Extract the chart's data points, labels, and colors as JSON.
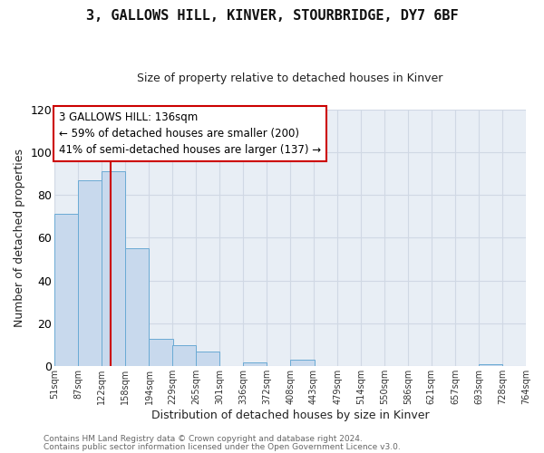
{
  "title": "3, GALLOWS HILL, KINVER, STOURBRIDGE, DY7 6BF",
  "subtitle": "Size of property relative to detached houses in Kinver",
  "xlabel": "Distribution of detached houses by size in Kinver",
  "ylabel": "Number of detached properties",
  "bar_left_edges": [
    51,
    87,
    122,
    158,
    194,
    229,
    265,
    301,
    336,
    372,
    408,
    443,
    479,
    514,
    550,
    586,
    621,
    657,
    693,
    728
  ],
  "bar_heights": [
    71,
    87,
    91,
    55,
    13,
    10,
    7,
    0,
    2,
    0,
    3,
    0,
    0,
    0,
    0,
    0,
    0,
    0,
    1,
    0
  ],
  "bin_width": 36,
  "bar_facecolor": "#c8d9ed",
  "bar_edgecolor": "#6aaad4",
  "property_line_x": 136,
  "property_line_color": "#cc0000",
  "ylim": [
    0,
    120
  ],
  "yticks": [
    0,
    20,
    40,
    60,
    80,
    100,
    120
  ],
  "xtick_labels": [
    "51sqm",
    "87sqm",
    "122sqm",
    "158sqm",
    "194sqm",
    "229sqm",
    "265sqm",
    "301sqm",
    "336sqm",
    "372sqm",
    "408sqm",
    "443sqm",
    "479sqm",
    "514sqm",
    "550sqm",
    "586sqm",
    "621sqm",
    "657sqm",
    "693sqm",
    "728sqm",
    "764sqm"
  ],
  "annotation_box_text": "3 GALLOWS HILL: 136sqm\n← 59% of detached houses are smaller (200)\n41% of semi-detached houses are larger (137) →",
  "grid_color": "#d0d8e4",
  "fig_background_color": "#ffffff",
  "plot_background_color": "#e8eef5",
  "footnote1": "Contains HM Land Registry data © Crown copyright and database right 2024.",
  "footnote2": "Contains public sector information licensed under the Open Government Licence v3.0."
}
